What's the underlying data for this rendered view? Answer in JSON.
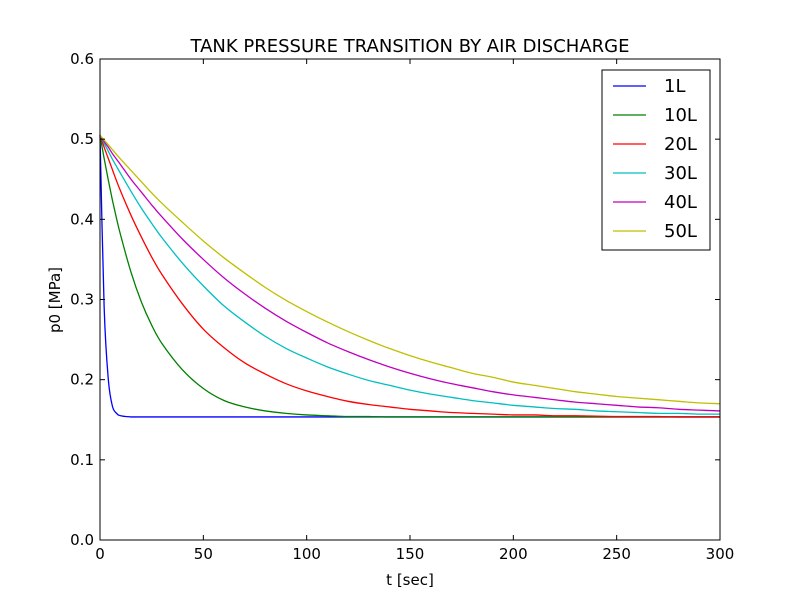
{
  "chart_data": {
    "type": "line",
    "title": "TANK PRESSURE TRANSITION BY AIR DISCHARGE",
    "xlabel": "t [sec]",
    "ylabel": "p0 [MPa]",
    "xlim": [
      0,
      300
    ],
    "ylim": [
      0.0,
      0.6
    ],
    "xticks": [
      "0",
      "50",
      "100",
      "150",
      "200",
      "250",
      "300"
    ],
    "yticks": [
      "0.0",
      "0.1",
      "0.2",
      "0.3",
      "0.4",
      "0.5",
      "0.6"
    ],
    "grid": false,
    "legend_position": "top-right",
    "x": [
      0,
      2,
      4,
      6,
      8,
      10,
      15,
      20,
      25,
      30,
      40,
      50,
      60,
      70,
      80,
      90,
      100,
      110,
      120,
      130,
      140,
      150,
      160,
      170,
      180,
      190,
      200,
      210,
      220,
      230,
      240,
      250,
      260,
      270,
      280,
      290,
      300
    ],
    "series": [
      {
        "name": "1L",
        "color": "#0000ff",
        "values": [
          0.505,
          0.291,
          0.201,
          0.167,
          0.158,
          0.155,
          0.1535,
          0.1535,
          0.1535,
          0.1535,
          0.1535,
          0.1535,
          0.1535,
          0.1535,
          0.1535,
          0.1535,
          0.1535,
          0.1535,
          0.1535,
          0.1535,
          0.1535,
          0.1535,
          0.1535,
          0.1535,
          0.1535,
          0.1535,
          0.1535,
          0.1535,
          0.1535,
          0.1535,
          0.1535,
          0.1535,
          0.1535,
          0.1535,
          0.1535,
          0.1535,
          0.1535
        ]
      },
      {
        "name": "10L",
        "color": "#008000",
        "values": [
          0.505,
          0.476,
          0.449,
          0.424,
          0.401,
          0.38,
          0.334,
          0.297,
          0.268,
          0.245,
          0.212,
          0.189,
          0.174,
          0.166,
          0.161,
          0.158,
          0.156,
          0.155,
          0.154,
          0.154,
          0.1535,
          0.1535,
          0.1535,
          0.1535,
          0.1535,
          0.1535,
          0.1535,
          0.1535,
          0.1535,
          0.1535,
          0.1535,
          0.1535,
          0.1535,
          0.1535,
          0.1535,
          0.1535,
          0.1535
        ]
      },
      {
        "name": "20L",
        "color": "#ff0000",
        "values": [
          0.505,
          0.49,
          0.476,
          0.462,
          0.448,
          0.435,
          0.405,
          0.378,
          0.353,
          0.331,
          0.294,
          0.263,
          0.24,
          0.221,
          0.207,
          0.195,
          0.186,
          0.179,
          0.173,
          0.169,
          0.166,
          0.163,
          0.161,
          0.159,
          0.158,
          0.157,
          0.156,
          0.156,
          0.155,
          0.155,
          0.1545,
          0.154,
          0.154,
          0.154,
          0.1535,
          0.1535,
          0.1535
        ]
      },
      {
        "name": "30L",
        "color": "#00bfbf",
        "values": [
          0.505,
          0.495,
          0.485,
          0.475,
          0.466,
          0.457,
          0.435,
          0.414,
          0.395,
          0.377,
          0.345,
          0.317,
          0.292,
          0.272,
          0.254,
          0.239,
          0.227,
          0.216,
          0.207,
          0.199,
          0.193,
          0.187,
          0.182,
          0.178,
          0.174,
          0.171,
          0.168,
          0.166,
          0.164,
          0.163,
          0.161,
          0.16,
          0.159,
          0.158,
          0.158,
          0.157,
          0.157
        ]
      },
      {
        "name": "40L",
        "color": "#bf00bf",
        "values": [
          0.505,
          0.497,
          0.49,
          0.482,
          0.475,
          0.468,
          0.45,
          0.434,
          0.418,
          0.403,
          0.375,
          0.35,
          0.327,
          0.307,
          0.289,
          0.273,
          0.259,
          0.246,
          0.235,
          0.225,
          0.216,
          0.208,
          0.201,
          0.195,
          0.19,
          0.185,
          0.181,
          0.178,
          0.175,
          0.172,
          0.17,
          0.168,
          0.166,
          0.165,
          0.163,
          0.162,
          0.161
        ]
      },
      {
        "name": "50L",
        "color": "#bfbf00",
        "values": [
          0.505,
          0.499,
          0.493,
          0.487,
          0.481,
          0.475,
          0.461,
          0.447,
          0.433,
          0.42,
          0.396,
          0.373,
          0.352,
          0.333,
          0.315,
          0.299,
          0.285,
          0.272,
          0.26,
          0.249,
          0.239,
          0.23,
          0.222,
          0.215,
          0.208,
          0.203,
          0.197,
          0.193,
          0.189,
          0.185,
          0.182,
          0.179,
          0.177,
          0.175,
          0.173,
          0.171,
          0.17
        ]
      }
    ]
  }
}
